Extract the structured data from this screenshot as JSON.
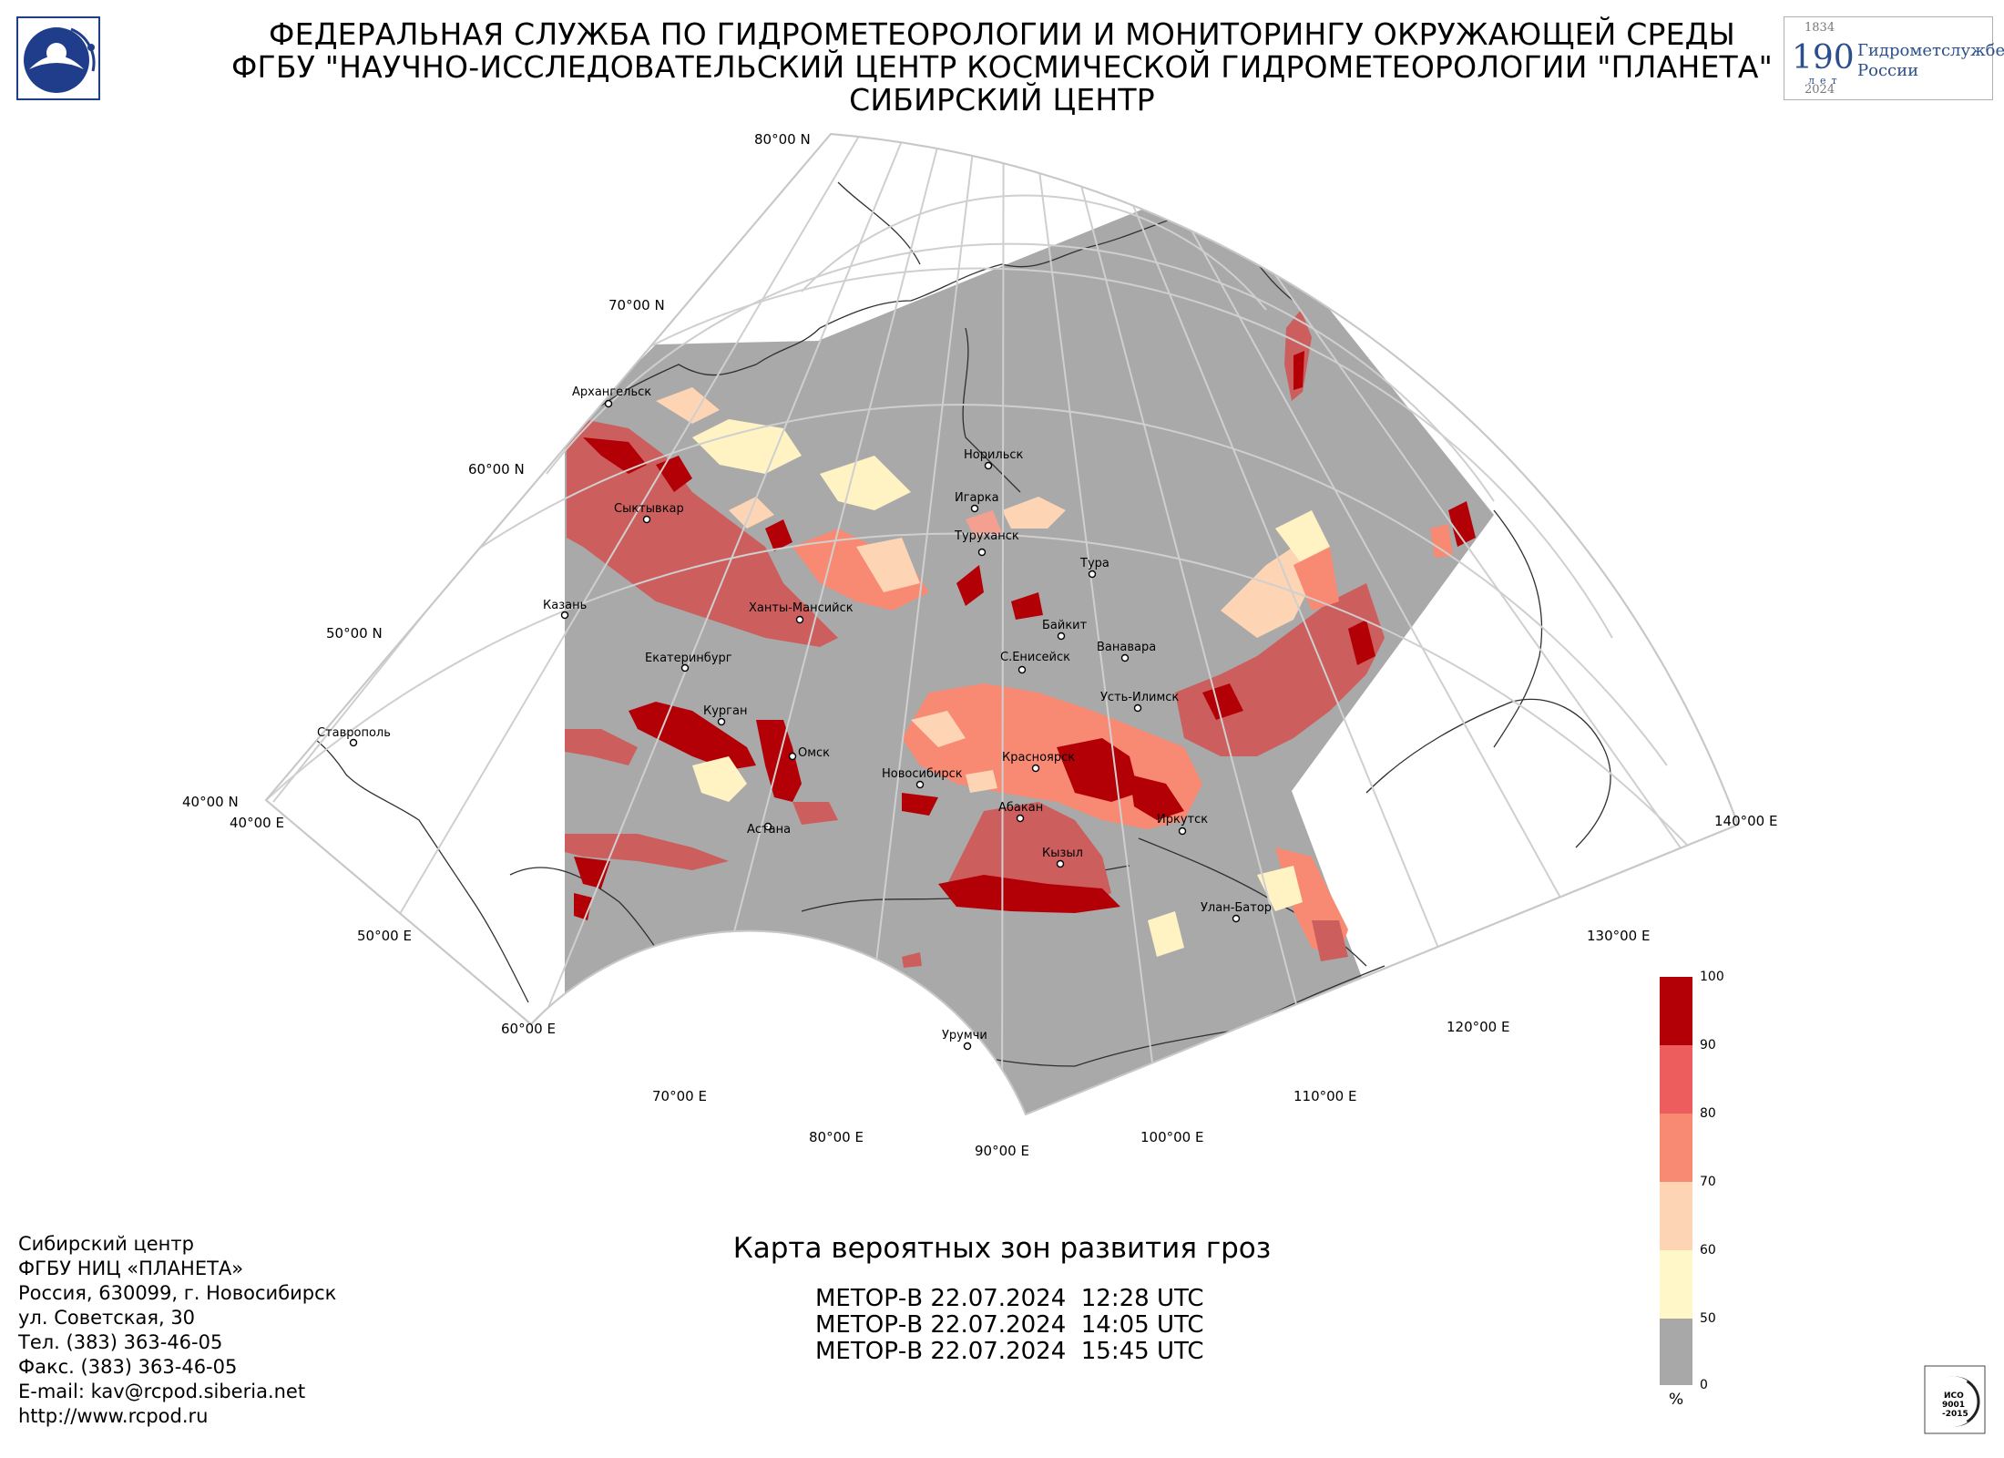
{
  "header": {
    "line1": "ФЕДЕРАЛЬНАЯ СЛУЖБА ПО ГИДРОМЕТЕОРОЛОГИИ И МОНИТОРИНГУ ОКРУЖАЮЩЕЙ СРЕДЫ",
    "line2": "ФГБУ \"НАУЧНО-ИССЛЕДОВАТЕЛЬСКИЙ ЦЕНТР КОСМИЧЕСКОЙ ГИДРОМЕТЕОРОЛОГИИ \"ПЛАНЕТА\"",
    "line3": "СИБИРСКИЙ ЦЕНТР"
  },
  "anniversary_logo": {
    "year_start": "1834",
    "number": "190",
    "number_suffix": "лет",
    "text1": "Гидрометслужбе",
    "text2": "России",
    "year_end": "2024"
  },
  "grid_labels": {
    "lat80": "80°00 N",
    "lat70": "70°00 N",
    "lat60": "60°00 N",
    "lat50": "50°00 N",
    "lat40": "40°00 N",
    "lon40": "40°00 E",
    "lon50": "50°00 E",
    "lon60": "60°00 E",
    "lon70": "70°00 E",
    "lon80": "80°00 E",
    "lon90": "90°00 E",
    "lon100": "100°00 E",
    "lon110": "110°00 E",
    "lon120": "120°00 E",
    "lon130": "130°00 E",
    "lon140": "140°00 E"
  },
  "cities": {
    "arkhangelsk": "Архангельск",
    "syktyvkar": "Сыктывкар",
    "kazan": "Казань",
    "ekaterinburg": "Екатеринбург",
    "kurgan": "Курган",
    "stavropol": "Ставрополь",
    "khanty": "Ханты-Мансийск",
    "omsk": "Омск",
    "astana": "Астана",
    "novosibirsk": "Новосибирск",
    "norilsk": "Норильск",
    "igarka": "Игарка",
    "turukhansk": "Туруханск",
    "tura": "Тура",
    "baykit": "Байкит",
    "yeniseysk": "С.Енисейск",
    "vanavara": "Ванавара",
    "ustilimsk": "Усть-Илимск",
    "krasnoyarsk": "Красноярск",
    "abakan": "Абакан",
    "irkutsk": "Иркутск",
    "kyzyl": "Кызыл",
    "ulanbator": "Улан-Батор",
    "urumqi": "Урумчи"
  },
  "map_title": "Карта вероятных зон развития гроз",
  "passes": [
    "МЕТОР-В 22.07.2024  12:28 UTC",
    "МЕТОР-В 22.07.2024  14:05 UTC",
    "МЕТОР-В 22.07.2024  15:45 UTC"
  ],
  "contacts": [
    "Сибирский центр",
    "ФГБУ НИЦ «ПЛАНЕТА»",
    "Россия, 630099, г. Новосибирск",
    "ул. Советская, 30",
    "Тел. (383) 363-46-05",
    "Факс. (383) 363-46-05",
    "E-mail: kav@rcpod.siberia.net",
    "http://www.rcpod.ru"
  ],
  "legend": {
    "unit": "%",
    "ticks": [
      "0",
      "50",
      "60",
      "70",
      "80",
      "90",
      "100"
    ],
    "colors": {
      "0-50": "#a8a8a8",
      "50-60": "#fff7c8",
      "60-70": "#fdd5b4",
      "70-80": "#f88a74",
      "80-90": "#ee5d5d",
      "90-100": "#b30006"
    }
  },
  "iso_mark": {
    "text1": "ИСО",
    "text2": "9001",
    "text3": "-2015"
  }
}
